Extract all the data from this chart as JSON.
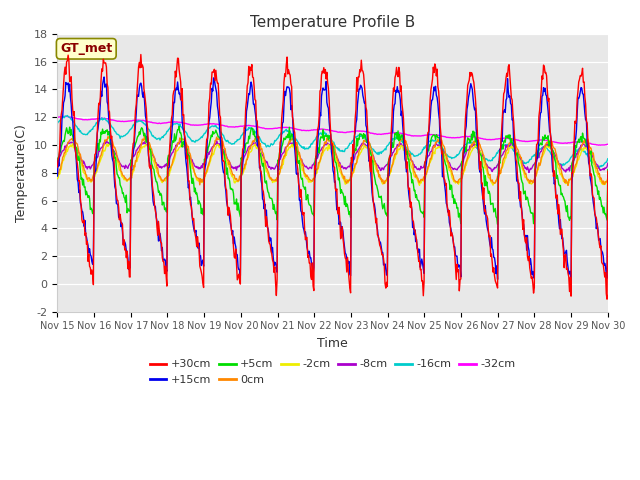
{
  "title": "Temperature Profile B",
  "xlabel": "Time",
  "ylabel": "Temperature(C)",
  "ylim": [
    -2,
    18
  ],
  "yticks": [
    -2,
    0,
    2,
    4,
    6,
    8,
    10,
    12,
    14,
    16,
    18
  ],
  "xtick_labels": [
    "Nov 15",
    "Nov 16",
    "Nov 17",
    "Nov 18",
    "Nov 19",
    "Nov 20",
    "Nov 21",
    "Nov 22",
    "Nov 23",
    "Nov 24",
    "Nov 25",
    "Nov 26",
    "Nov 27",
    "Nov 28",
    "Nov 29",
    "Nov 30"
  ],
  "legend_label": "GT_met",
  "series_labels": [
    "+30cm",
    "+15cm",
    "+5cm",
    "0cm",
    "-2cm",
    "-8cm",
    "-16cm",
    "-32cm"
  ],
  "series_colors": [
    "#ff0000",
    "#0000ee",
    "#00dd00",
    "#ff8800",
    "#eeee00",
    "#aa00cc",
    "#00cccc",
    "#ff00ff"
  ],
  "background_color": "#e8e8e8",
  "figure_color": "#ffffff",
  "grid_color": "#ffffff",
  "title_fontsize": 11,
  "tick_fontsize": 7,
  "axis_label_fontsize": 9,
  "legend_fontsize": 8
}
